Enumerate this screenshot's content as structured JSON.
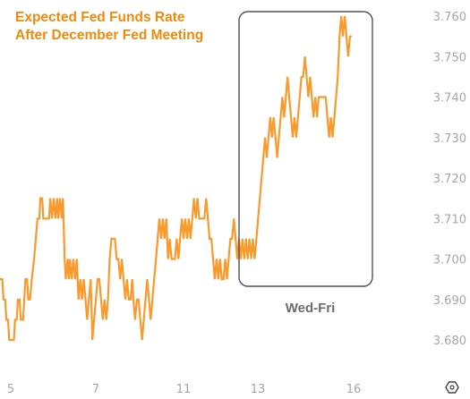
{
  "chart_data": {
    "type": "line",
    "title_lines": [
      "Expected Fed Funds Rate",
      "After December Fed Meeting"
    ],
    "xlabel": "",
    "ylabel": "",
    "x_ticks": [
      "5",
      "7",
      "11",
      "13",
      "16"
    ],
    "y_ticks": [
      "3.680",
      "3.690",
      "3.700",
      "3.710",
      "3.720",
      "3.730",
      "3.740",
      "3.750",
      "3.760"
    ],
    "ylim": [
      3.6755,
      3.7635
    ],
    "x_range": [
      0,
      100
    ],
    "grid": false,
    "legend": "none",
    "series": [
      {
        "color": "#f89a2c",
        "points": [
          [
            0.0,
            3.695
          ],
          [
            0.4,
            3.695
          ],
          [
            0.6,
            3.69
          ],
          [
            0.9,
            3.69
          ],
          [
            1.1,
            3.685
          ],
          [
            1.4,
            3.685
          ],
          [
            1.6,
            3.68
          ],
          [
            2.4,
            3.68
          ],
          [
            2.6,
            3.685
          ],
          [
            2.9,
            3.685
          ],
          [
            3.1,
            3.69
          ],
          [
            3.4,
            3.69
          ],
          [
            3.6,
            3.685
          ],
          [
            4.0,
            3.685
          ],
          [
            4.2,
            3.69
          ],
          [
            4.4,
            3.695
          ],
          [
            4.7,
            3.695
          ],
          [
            4.9,
            3.69
          ],
          [
            5.2,
            3.69
          ],
          [
            5.5,
            3.695
          ],
          [
            5.9,
            3.7
          ],
          [
            6.2,
            3.705
          ],
          [
            6.5,
            3.71
          ],
          [
            6.8,
            3.71
          ],
          [
            7.0,
            3.715
          ],
          [
            7.3,
            3.715
          ],
          [
            7.5,
            3.71
          ],
          [
            8.5,
            3.71
          ],
          [
            8.7,
            3.715
          ],
          [
            9.0,
            3.71
          ],
          [
            9.3,
            3.715
          ],
          [
            9.6,
            3.71
          ],
          [
            9.9,
            3.715
          ],
          [
            10.1,
            3.71
          ],
          [
            10.4,
            3.715
          ],
          [
            10.7,
            3.71
          ],
          [
            10.9,
            3.715
          ],
          [
            11.2,
            3.7
          ],
          [
            11.4,
            3.695
          ],
          [
            11.7,
            3.7
          ],
          [
            11.9,
            3.695
          ],
          [
            12.1,
            3.7
          ],
          [
            12.4,
            3.695
          ],
          [
            12.7,
            3.7
          ],
          [
            13.0,
            3.695
          ],
          [
            13.3,
            3.7
          ],
          [
            13.6,
            3.69
          ],
          [
            13.9,
            3.695
          ],
          [
            14.2,
            3.69
          ],
          [
            14.5,
            3.695
          ],
          [
            14.8,
            3.69
          ],
          [
            15.1,
            3.685
          ],
          [
            15.4,
            3.69
          ],
          [
            15.7,
            3.695
          ],
          [
            16.0,
            3.68
          ],
          [
            16.3,
            3.685
          ],
          [
            16.6,
            3.69
          ],
          [
            16.9,
            3.695
          ],
          [
            17.2,
            3.695
          ],
          [
            17.5,
            3.69
          ],
          [
            17.8,
            3.685
          ],
          [
            18.1,
            3.69
          ],
          [
            18.4,
            3.685
          ],
          [
            18.7,
            3.69
          ],
          [
            19.0,
            3.7
          ],
          [
            19.3,
            3.705
          ],
          [
            19.6,
            3.705
          ],
          [
            19.9,
            3.705
          ],
          [
            20.2,
            3.7
          ],
          [
            20.5,
            3.7
          ],
          [
            20.8,
            3.695
          ],
          [
            21.1,
            3.7
          ],
          [
            21.4,
            3.695
          ],
          [
            21.7,
            3.69
          ],
          [
            22.0,
            3.695
          ],
          [
            22.3,
            3.69
          ],
          [
            22.6,
            3.69
          ],
          [
            22.9,
            3.695
          ],
          [
            23.1,
            3.69
          ],
          [
            23.4,
            3.685
          ],
          [
            23.7,
            3.69
          ],
          [
            24.0,
            3.69
          ],
          [
            24.3,
            3.685
          ],
          [
            24.6,
            3.68
          ],
          [
            24.9,
            3.685
          ],
          [
            25.2,
            3.69
          ],
          [
            25.5,
            3.695
          ],
          [
            25.8,
            3.69
          ],
          [
            26.1,
            3.685
          ],
          [
            26.4,
            3.69
          ],
          [
            26.7,
            3.695
          ],
          [
            27.0,
            3.7
          ],
          [
            27.3,
            3.705
          ],
          [
            27.6,
            3.71
          ],
          [
            27.9,
            3.705
          ],
          [
            28.2,
            3.71
          ],
          [
            28.5,
            3.705
          ],
          [
            28.8,
            3.71
          ],
          [
            29.1,
            3.7
          ],
          [
            29.4,
            3.705
          ],
          [
            29.7,
            3.7
          ],
          [
            30.0,
            3.7
          ],
          [
            30.3,
            3.7
          ],
          [
            30.6,
            3.705
          ],
          [
            30.9,
            3.7
          ],
          [
            31.2,
            3.705
          ],
          [
            31.5,
            3.71
          ],
          [
            31.8,
            3.705
          ],
          [
            32.1,
            3.71
          ],
          [
            32.4,
            3.705
          ],
          [
            32.7,
            3.71
          ],
          [
            33.0,
            3.705
          ],
          [
            33.3,
            3.71
          ],
          [
            33.6,
            3.715
          ],
          [
            33.9,
            3.71
          ],
          [
            34.2,
            3.715
          ],
          [
            34.5,
            3.71
          ],
          [
            34.8,
            3.71
          ],
          [
            35.1,
            3.71
          ],
          [
            35.4,
            3.71
          ],
          [
            35.7,
            3.715
          ],
          [
            36.0,
            3.71
          ],
          [
            36.3,
            3.705
          ],
          [
            36.6,
            3.705
          ],
          [
            36.9,
            3.7
          ],
          [
            37.2,
            3.695
          ],
          [
            37.5,
            3.7
          ],
          [
            37.8,
            3.695
          ],
          [
            38.1,
            3.7
          ],
          [
            38.4,
            3.695
          ],
          [
            38.7,
            3.695
          ],
          [
            39.0,
            3.7
          ],
          [
            39.3,
            3.695
          ],
          [
            39.6,
            3.7
          ],
          [
            39.9,
            3.705
          ],
          [
            40.2,
            3.705
          ],
          [
            40.5,
            3.71
          ],
          [
            40.8,
            3.705
          ],
          [
            41.1,
            3.7
          ],
          [
            41.4,
            3.705
          ],
          [
            41.7,
            3.7
          ],
          [
            42.0,
            3.705
          ],
          [
            42.3,
            3.7
          ],
          [
            42.6,
            3.705
          ],
          [
            42.9,
            3.7
          ],
          [
            43.2,
            3.705
          ],
          [
            43.5,
            3.7
          ],
          [
            43.8,
            3.705
          ],
          [
            44.1,
            3.7
          ],
          [
            44.4,
            3.705
          ],
          [
            44.7,
            3.71
          ],
          [
            45.0,
            3.715
          ],
          [
            45.3,
            3.72
          ],
          [
            45.6,
            3.725
          ],
          [
            45.9,
            3.73
          ],
          [
            46.2,
            3.725
          ],
          [
            46.5,
            3.73
          ],
          [
            46.8,
            3.735
          ],
          [
            47.1,
            3.73
          ],
          [
            47.4,
            3.735
          ],
          [
            47.7,
            3.73
          ],
          [
            48.0,
            3.725
          ],
          [
            48.3,
            3.73
          ],
          [
            48.6,
            3.735
          ],
          [
            48.9,
            3.74
          ],
          [
            49.2,
            3.735
          ],
          [
            49.5,
            3.74
          ],
          [
            49.8,
            3.745
          ],
          [
            50.1,
            3.74
          ],
          [
            50.4,
            3.735
          ],
          [
            50.7,
            3.73
          ],
          [
            51.0,
            3.735
          ],
          [
            51.3,
            3.73
          ],
          [
            51.6,
            3.735
          ],
          [
            51.9,
            3.74
          ],
          [
            52.2,
            3.745
          ],
          [
            52.5,
            3.745
          ],
          [
            52.8,
            3.75
          ],
          [
            53.1,
            3.745
          ],
          [
            53.4,
            3.74
          ],
          [
            53.7,
            3.745
          ],
          [
            54.0,
            3.74
          ],
          [
            54.3,
            3.735
          ],
          [
            54.6,
            3.74
          ],
          [
            54.9,
            3.735
          ],
          [
            55.2,
            3.74
          ],
          [
            55.5,
            3.74
          ],
          [
            55.8,
            3.74
          ],
          [
            56.1,
            3.74
          ],
          [
            56.4,
            3.74
          ],
          [
            56.7,
            3.735
          ],
          [
            57.0,
            3.73
          ],
          [
            57.3,
            3.735
          ],
          [
            57.6,
            3.73
          ],
          [
            57.9,
            3.735
          ],
          [
            58.2,
            3.74
          ],
          [
            58.5,
            3.745
          ],
          [
            58.8,
            3.755
          ],
          [
            59.1,
            3.76
          ],
          [
            59.4,
            3.755
          ],
          [
            59.7,
            3.76
          ],
          [
            60.0,
            3.755
          ],
          [
            60.3,
            3.75
          ],
          [
            60.6,
            3.755
          ],
          [
            60.9,
            3.755
          ]
        ]
      }
    ],
    "annotation": {
      "label": "Wed-Fri",
      "x_start": 44.2,
      "x_end": 60.9,
      "y_top": 3.7615,
      "y_bottom": 3.6955
    }
  },
  "watermark_icon": "hexagon-logo-icon",
  "colors": {
    "title": "#f08a0c",
    "line": "#f89a2c",
    "ticks": "#a6a6a6",
    "annotation": "#6b6b6b",
    "box": "#505050"
  }
}
